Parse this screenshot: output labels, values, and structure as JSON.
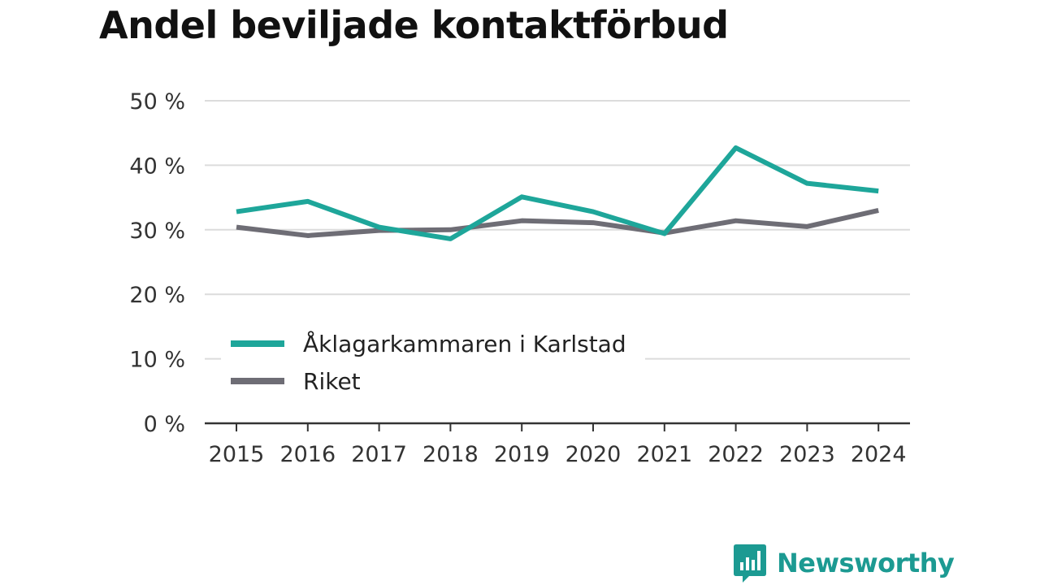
{
  "chart_data": {
    "type": "line",
    "title": "Andel beviljade kontaktförbud",
    "categories": [
      "2015",
      "2016",
      "2017",
      "2018",
      "2019",
      "2020",
      "2021",
      "2022",
      "2023",
      "2024"
    ],
    "y_ticks": [
      "0 %",
      "10 %",
      "20 %",
      "30 %",
      "40 %",
      "50 %"
    ],
    "ylim": [
      0,
      50
    ],
    "grid": true,
    "legend_position": "inside-left",
    "series": [
      {
        "name": "Åklagarkammaren i Karlstad",
        "color": "#1ea69a",
        "values": [
          32.8,
          34.4,
          30.4,
          28.6,
          35.1,
          32.8,
          29.4,
          42.7,
          37.2,
          36.0
        ]
      },
      {
        "name": "Riket",
        "color": "#6e6d75",
        "values": [
          30.4,
          29.1,
          29.9,
          30.0,
          31.4,
          31.1,
          29.5,
          31.4,
          30.5,
          33.0
        ]
      }
    ]
  },
  "brand": {
    "name": "Newsworthy",
    "icon": "newsworthy-logo-icon",
    "color": "#1c9a92"
  }
}
